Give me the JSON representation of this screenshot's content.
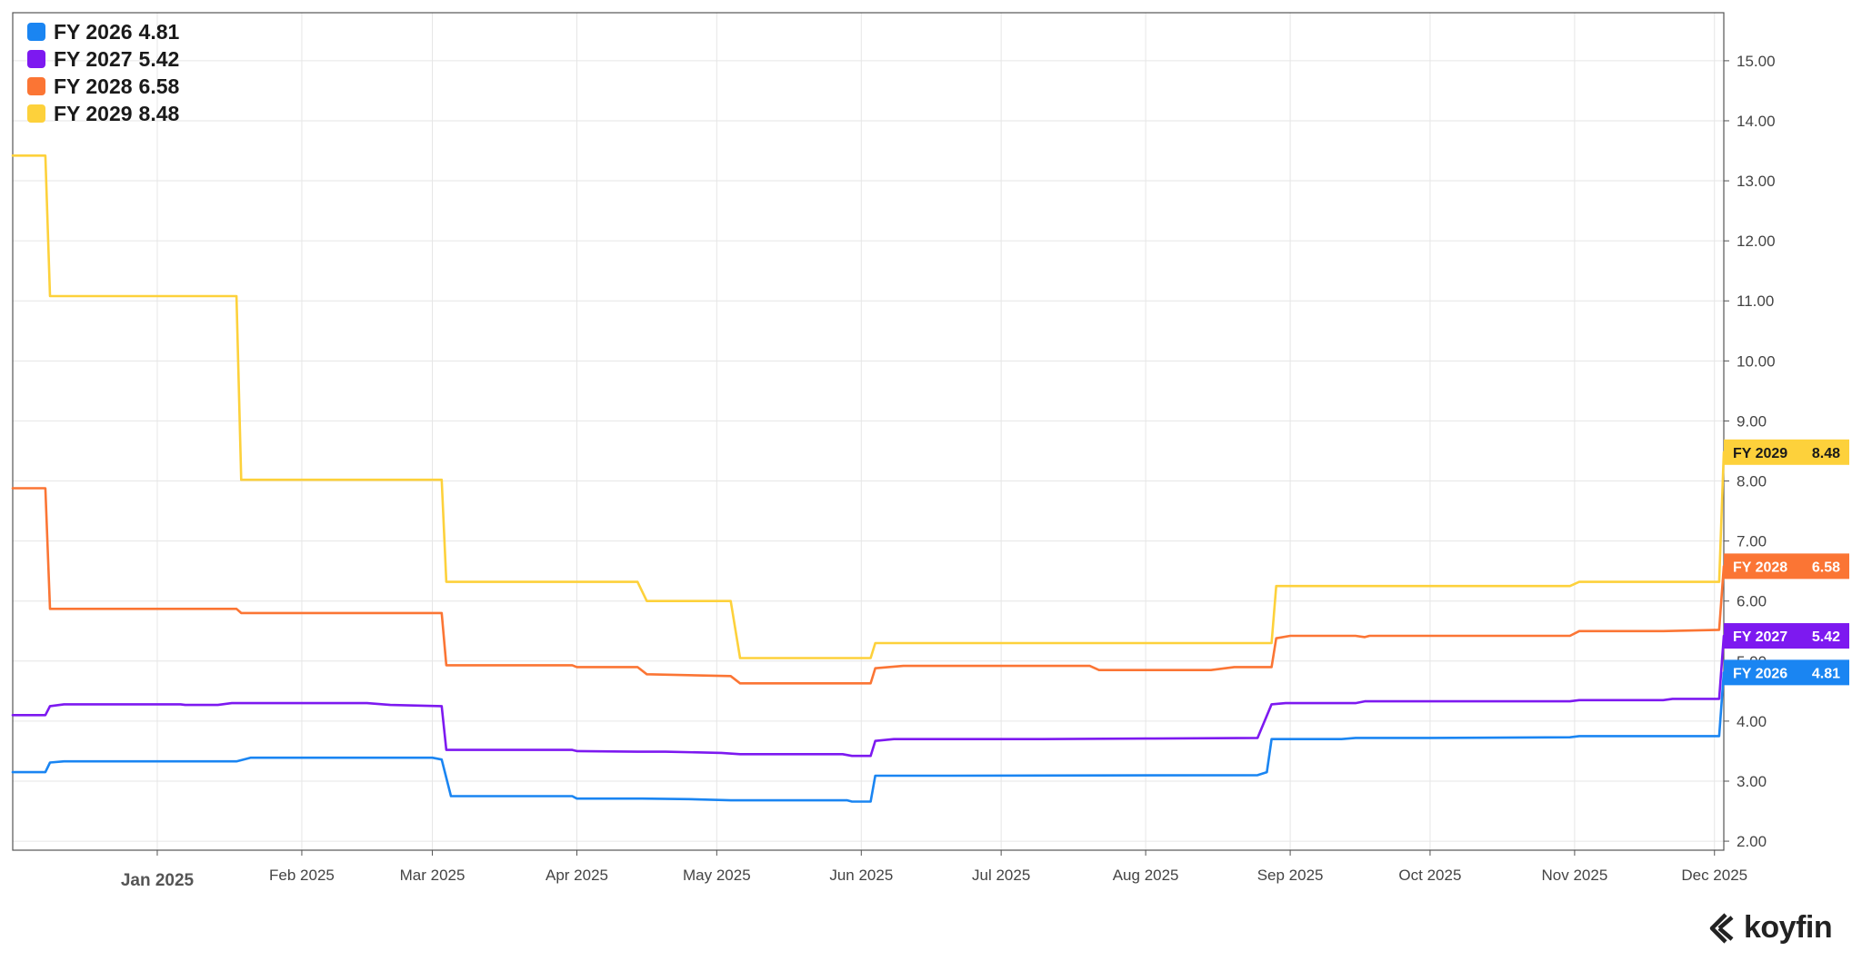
{
  "chart_data": {
    "type": "line",
    "title": "",
    "xlabel": "",
    "ylabel": "",
    "x_start": "2024-12-01",
    "x_end": "2025-12-03",
    "ylim": [
      1.85,
      15.8
    ],
    "y_ticks": [
      "2.00",
      "3.00",
      "4.00",
      "5.00",
      "6.00",
      "7.00",
      "8.00",
      "9.00",
      "10.00",
      "11.00",
      "12.00",
      "13.00",
      "14.00",
      "15.00"
    ],
    "x_ticks": [
      {
        "date": "2025-01-01",
        "label": "Jan 2025"
      },
      {
        "date": "2025-02-01",
        "label": "Feb 2025"
      },
      {
        "date": "2025-03-01",
        "label": "Mar 2025"
      },
      {
        "date": "2025-04-01",
        "label": "Apr 2025"
      },
      {
        "date": "2025-05-01",
        "label": "May 2025"
      },
      {
        "date": "2025-06-01",
        "label": "Jun 2025"
      },
      {
        "date": "2025-07-01",
        "label": "Jul 2025"
      },
      {
        "date": "2025-08-01",
        "label": "Aug 2025"
      },
      {
        "date": "2025-09-01",
        "label": "Sep 2025"
      },
      {
        "date": "2025-10-01",
        "label": "Oct 2025"
      },
      {
        "date": "2025-11-01",
        "label": "Nov 2025"
      },
      {
        "date": "2025-12-01",
        "label": "Dec 2025"
      }
    ],
    "grid": true,
    "legend_position": "top-left",
    "series": [
      {
        "name": "FY 2026",
        "last": "4.81",
        "color": "#1a85f2",
        "points": [
          [
            "2024-12-01",
            3.15
          ],
          [
            "2024-12-08",
            3.15
          ],
          [
            "2024-12-09",
            3.31
          ],
          [
            "2024-12-12",
            3.33
          ],
          [
            "2025-01-18",
            3.33
          ],
          [
            "2025-01-21",
            3.39
          ],
          [
            "2025-03-01",
            3.39
          ],
          [
            "2025-03-03",
            3.36
          ],
          [
            "2025-03-05",
            2.75
          ],
          [
            "2025-03-31",
            2.75
          ],
          [
            "2025-04-01",
            2.71
          ],
          [
            "2025-04-15",
            2.71
          ],
          [
            "2025-04-25",
            2.7
          ],
          [
            "2025-05-04",
            2.68
          ],
          [
            "2025-05-29",
            2.68
          ],
          [
            "2025-05-30",
            2.66
          ],
          [
            "2025-06-03",
            2.66
          ],
          [
            "2025-06-04",
            3.09
          ],
          [
            "2025-06-20",
            3.09
          ],
          [
            "2025-08-25",
            3.1
          ],
          [
            "2025-08-27",
            3.15
          ],
          [
            "2025-08-28",
            3.7
          ],
          [
            "2025-09-12",
            3.7
          ],
          [
            "2025-09-15",
            3.72
          ],
          [
            "2025-10-01",
            3.72
          ],
          [
            "2025-10-31",
            3.73
          ],
          [
            "2025-11-02",
            3.75
          ],
          [
            "2025-12-02",
            3.75
          ],
          [
            "2025-12-03",
            4.81
          ]
        ]
      },
      {
        "name": "FY 2027",
        "last": "5.42",
        "color": "#7d19f0",
        "points": [
          [
            "2024-12-01",
            4.1
          ],
          [
            "2024-12-08",
            4.1
          ],
          [
            "2024-12-09",
            4.25
          ],
          [
            "2024-12-12",
            4.28
          ],
          [
            "2025-01-06",
            4.28
          ],
          [
            "2025-01-07",
            4.27
          ],
          [
            "2025-01-14",
            4.27
          ],
          [
            "2025-01-17",
            4.3
          ],
          [
            "2025-02-15",
            4.3
          ],
          [
            "2025-02-20",
            4.27
          ],
          [
            "2025-03-03",
            4.25
          ],
          [
            "2025-03-04",
            3.52
          ],
          [
            "2025-03-31",
            3.52
          ],
          [
            "2025-04-01",
            3.5
          ],
          [
            "2025-04-14",
            3.49
          ],
          [
            "2025-04-20",
            3.49
          ],
          [
            "2025-05-02",
            3.47
          ],
          [
            "2025-05-06",
            3.45
          ],
          [
            "2025-05-28",
            3.45
          ],
          [
            "2025-05-30",
            3.42
          ],
          [
            "2025-06-03",
            3.42
          ],
          [
            "2025-06-04",
            3.67
          ],
          [
            "2025-06-08",
            3.7
          ],
          [
            "2025-07-10",
            3.7
          ],
          [
            "2025-08-01",
            3.71
          ],
          [
            "2025-08-25",
            3.72
          ],
          [
            "2025-08-28",
            4.28
          ],
          [
            "2025-08-31",
            4.3
          ],
          [
            "2025-09-15",
            4.3
          ],
          [
            "2025-09-17",
            4.33
          ],
          [
            "2025-10-31",
            4.33
          ],
          [
            "2025-11-02",
            4.35
          ],
          [
            "2025-11-20",
            4.35
          ],
          [
            "2025-11-22",
            4.37
          ],
          [
            "2025-12-02",
            4.37
          ],
          [
            "2025-12-03",
            5.42
          ]
        ]
      },
      {
        "name": "FY 2028",
        "last": "6.58",
        "color": "#fb7534",
        "points": [
          [
            "2024-12-01",
            7.88
          ],
          [
            "2024-12-08",
            7.88
          ],
          [
            "2024-12-09",
            5.87
          ],
          [
            "2025-01-18",
            5.87
          ],
          [
            "2025-01-19",
            5.8
          ],
          [
            "2025-03-03",
            5.8
          ],
          [
            "2025-03-04",
            4.93
          ],
          [
            "2025-03-31",
            4.93
          ],
          [
            "2025-04-01",
            4.9
          ],
          [
            "2025-04-14",
            4.9
          ],
          [
            "2025-04-16",
            4.78
          ],
          [
            "2025-05-04",
            4.75
          ],
          [
            "2025-05-06",
            4.63
          ],
          [
            "2025-06-03",
            4.63
          ],
          [
            "2025-06-04",
            4.88
          ],
          [
            "2025-06-10",
            4.92
          ],
          [
            "2025-07-20",
            4.92
          ],
          [
            "2025-07-22",
            4.85
          ],
          [
            "2025-08-15",
            4.85
          ],
          [
            "2025-08-20",
            4.9
          ],
          [
            "2025-08-28",
            4.9
          ],
          [
            "2025-08-29",
            5.38
          ],
          [
            "2025-09-01",
            5.42
          ],
          [
            "2025-09-15",
            5.42
          ],
          [
            "2025-09-17",
            5.4
          ],
          [
            "2025-09-18",
            5.42
          ],
          [
            "2025-10-31",
            5.42
          ],
          [
            "2025-11-02",
            5.5
          ],
          [
            "2025-11-20",
            5.5
          ],
          [
            "2025-12-02",
            5.52
          ],
          [
            "2025-12-03",
            6.58
          ]
        ]
      },
      {
        "name": "FY 2029",
        "last": "8.48",
        "color": "#fdd13b",
        "points": [
          [
            "2024-12-01",
            13.42
          ],
          [
            "2024-12-08",
            13.42
          ],
          [
            "2024-12-09",
            11.08
          ],
          [
            "2025-01-18",
            11.08
          ],
          [
            "2025-01-19",
            8.02
          ],
          [
            "2025-03-03",
            8.02
          ],
          [
            "2025-03-04",
            6.32
          ],
          [
            "2025-04-14",
            6.32
          ],
          [
            "2025-04-16",
            6.0
          ],
          [
            "2025-05-04",
            6.0
          ],
          [
            "2025-05-06",
            5.05
          ],
          [
            "2025-06-03",
            5.05
          ],
          [
            "2025-06-04",
            5.3
          ],
          [
            "2025-08-28",
            5.3
          ],
          [
            "2025-08-29",
            6.25
          ],
          [
            "2025-10-31",
            6.25
          ],
          [
            "2025-11-02",
            6.32
          ],
          [
            "2025-12-02",
            6.32
          ],
          [
            "2025-12-03",
            8.48
          ]
        ]
      }
    ]
  },
  "branding": {
    "name": "koyfin"
  }
}
